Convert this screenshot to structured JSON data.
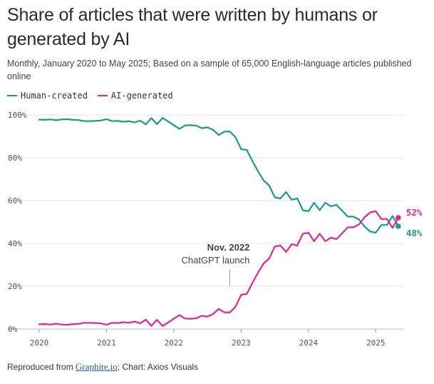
{
  "title": "Share of articles that were written by humans or generated by AI",
  "subtitle": "Monthly, January 2020 to May 2025; Based on a sample of 65,000 English-language articles published online",
  "colors": {
    "human": "#1a9a8c",
    "ai": "#e0259a",
    "grid": "#e6e6e6",
    "axis": "#999999"
  },
  "legend": [
    {
      "label": "Human-created",
      "color": "#1a9a8c"
    },
    {
      "label": "AI-generated",
      "color": "#e0259a"
    }
  ],
  "annotation": {
    "title": "Nov. 2022",
    "text": "ChatGPT launch",
    "x": 2022.83
  },
  "footer": {
    "prefix": "Reproduced from ",
    "link": "Graphite.io",
    "suffix": "; Chart: Axios Visuals"
  },
  "chart_data": {
    "type": "line",
    "x_range": [
      2020,
      2025.42
    ],
    "ylim": [
      0,
      100
    ],
    "y_ticks": [
      0,
      20,
      40,
      60,
      80,
      100
    ],
    "y_tick_labels": [
      "0%",
      "20%",
      "40%",
      "60%",
      "80%",
      "100%"
    ],
    "x_ticks": [
      2020,
      2021,
      2022,
      2023,
      2024,
      2025
    ],
    "x_tick_labels": [
      "2020",
      "2021",
      "2022",
      "2023",
      "2024",
      "2025"
    ],
    "grid": "horizontal",
    "legend_position": "top-left",
    "end_labels": [
      {
        "series": "AI-generated",
        "label": "52%"
      },
      {
        "series": "Human-created",
        "label": "48%"
      }
    ],
    "x": [
      "2020-01",
      "2020-02",
      "2020-03",
      "2020-04",
      "2020-05",
      "2020-06",
      "2020-07",
      "2020-08",
      "2020-09",
      "2020-10",
      "2020-11",
      "2020-12",
      "2021-01",
      "2021-02",
      "2021-03",
      "2021-04",
      "2021-05",
      "2021-06",
      "2021-07",
      "2021-08",
      "2021-09",
      "2021-10",
      "2021-11",
      "2021-12",
      "2022-01",
      "2022-02",
      "2022-03",
      "2022-04",
      "2022-05",
      "2022-06",
      "2022-07",
      "2022-08",
      "2022-09",
      "2022-10",
      "2022-11",
      "2022-12",
      "2023-01",
      "2023-02",
      "2023-03",
      "2023-04",
      "2023-05",
      "2023-06",
      "2023-07",
      "2023-08",
      "2023-09",
      "2023-10",
      "2023-11",
      "2023-12",
      "2024-01",
      "2024-02",
      "2024-03",
      "2024-04",
      "2024-05",
      "2024-06",
      "2024-07",
      "2024-08",
      "2024-09",
      "2024-10",
      "2024-11",
      "2024-12",
      "2025-01",
      "2025-02",
      "2025-03",
      "2025-04",
      "2025-05"
    ],
    "series": [
      {
        "name": "Human-created",
        "values": [
          97.8,
          97.7,
          97.9,
          97.5,
          97.9,
          98.0,
          97.7,
          97.6,
          97.1,
          97.1,
          97.2,
          97.4,
          98.0,
          97.1,
          97.2,
          96.8,
          97.1,
          96.5,
          97.3,
          95.6,
          98.5,
          95.7,
          98.6,
          96.9,
          95.2,
          93.5,
          95.1,
          95.2,
          95.0,
          93.8,
          94.2,
          93.0,
          90.6,
          92.2,
          92.2,
          89.6,
          84.0,
          83.6,
          78.5,
          73.7,
          69.4,
          67.0,
          61.5,
          61.0,
          64.0,
          60.4,
          61.0,
          55.5,
          55.0,
          59.0,
          55.5,
          59.0,
          57.3,
          58.0,
          55.3,
          52.5,
          52.5,
          51.2,
          47.8,
          45.5,
          45.0,
          48.6,
          48.6,
          52.8,
          48.0
        ]
      },
      {
        "name": "AI-generated",
        "values": [
          2.2,
          2.3,
          2.1,
          2.5,
          2.1,
          2.0,
          2.3,
          2.4,
          2.9,
          2.9,
          2.8,
          2.6,
          2.0,
          2.9,
          2.8,
          3.2,
          2.9,
          3.5,
          2.7,
          4.4,
          1.5,
          4.3,
          1.4,
          3.1,
          4.8,
          6.5,
          4.9,
          4.8,
          5.0,
          6.2,
          5.8,
          7.0,
          9.4,
          7.8,
          7.8,
          10.4,
          16.0,
          16.4,
          21.5,
          26.3,
          30.6,
          33.0,
          38.5,
          39.0,
          36.0,
          39.6,
          39.0,
          44.5,
          45.0,
          41.0,
          44.5,
          41.0,
          42.7,
          42.0,
          44.7,
          47.5,
          47.5,
          48.8,
          52.2,
          54.5,
          55.0,
          51.4,
          51.4,
          47.2,
          52.0
        ]
      }
    ]
  }
}
